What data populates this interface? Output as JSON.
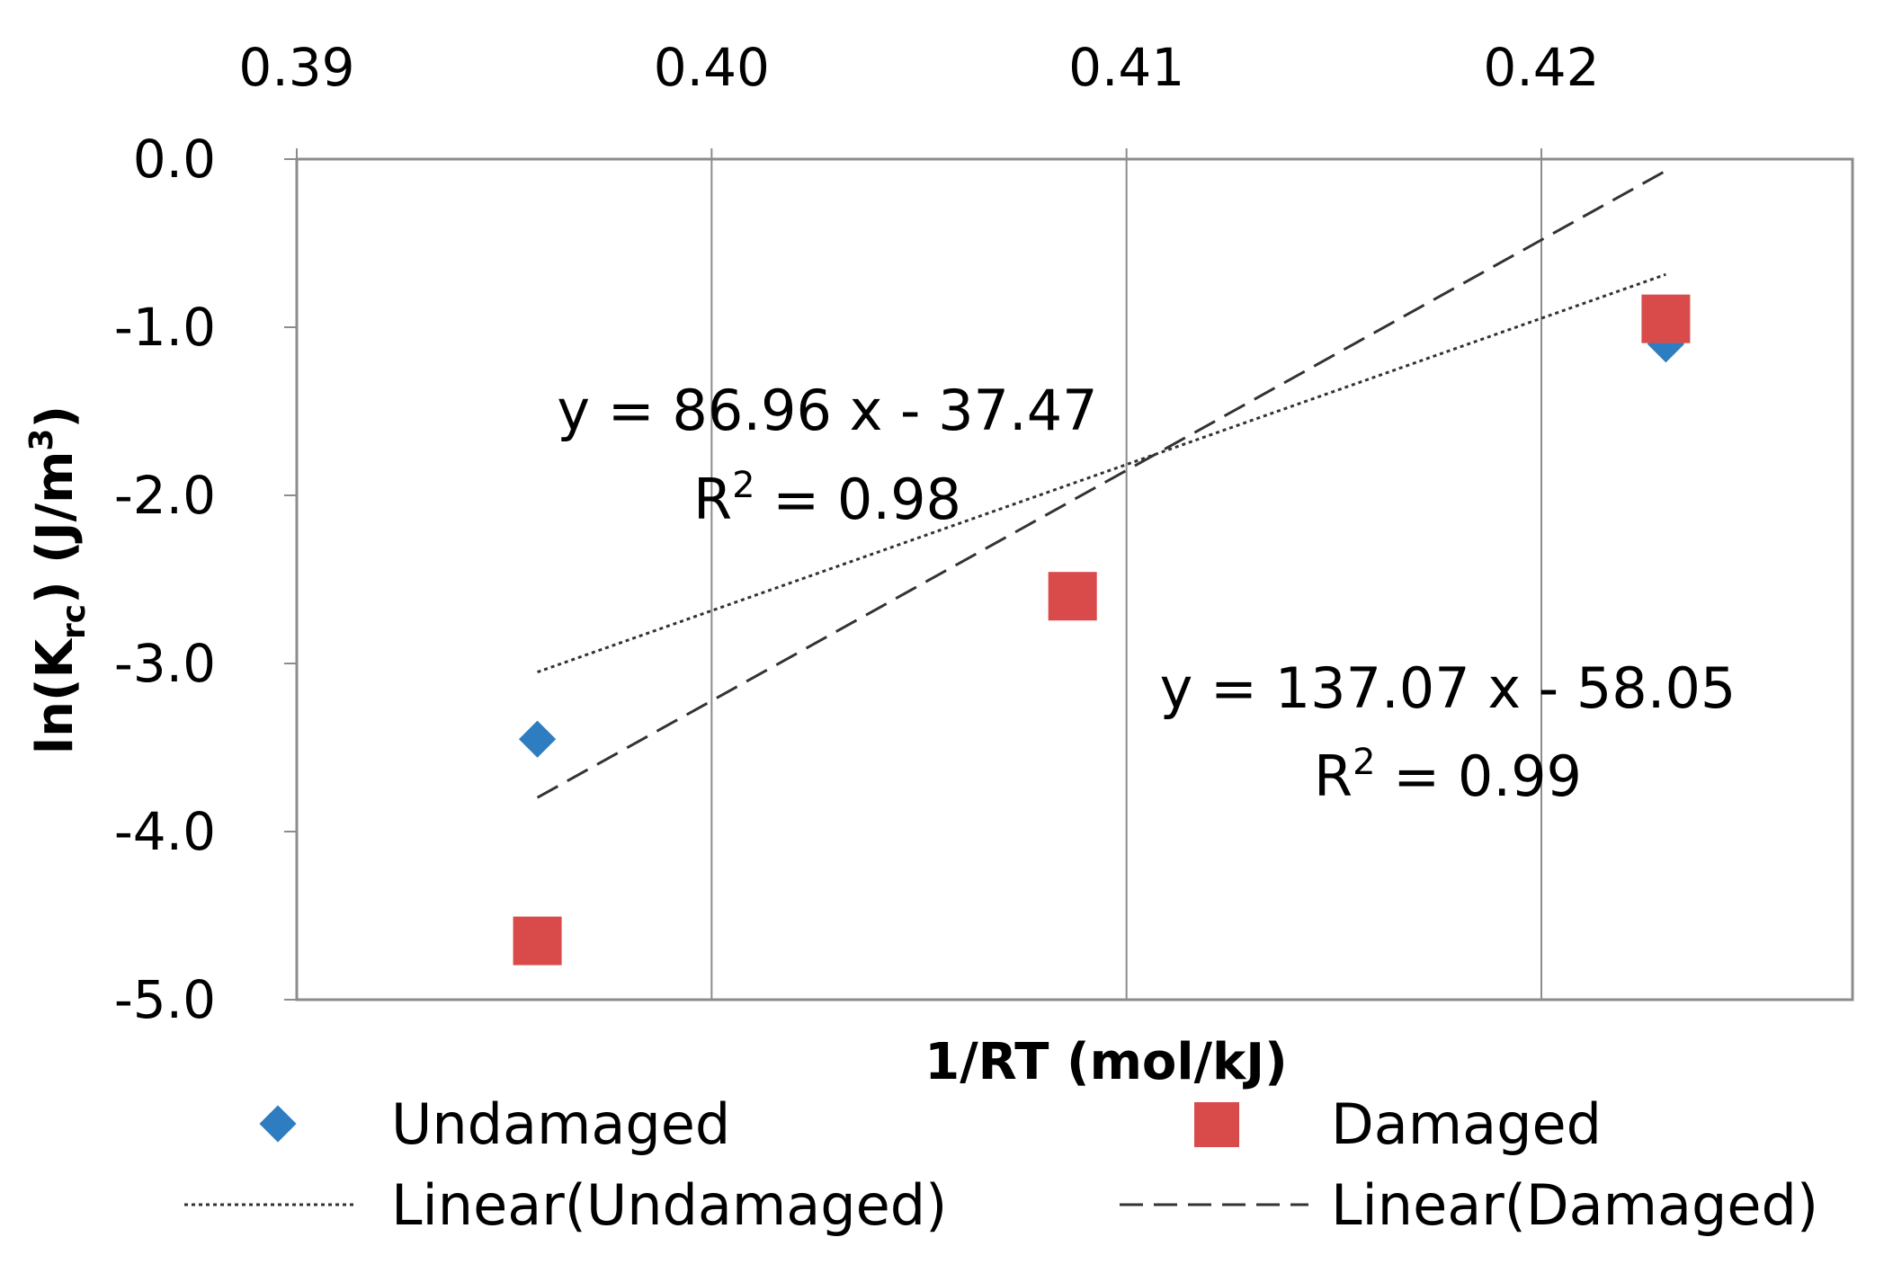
{
  "chart_data": {
    "type": "scatter",
    "title": "",
    "xlabel": "1/RT (mol/kJ)",
    "ylabel": "ln(K",
    "ylabel_sub": "rc",
    "ylabel_end": ") (J/m",
    "ylabel_sup": "3",
    "ylabel_close": ")",
    "xlim": [
      0.39,
      0.4275
    ],
    "ylim": [
      -5.0,
      0.0
    ],
    "x_ticks": [
      0.39,
      0.4,
      0.41,
      0.42
    ],
    "x_tick_labels": [
      "0.39",
      "0.40",
      "0.41",
      "0.42"
    ],
    "x_axis_position": "top",
    "y_ticks": [
      0.0,
      -1.0,
      -2.0,
      -3.0,
      -4.0,
      -5.0
    ],
    "y_tick_labels": [
      "0.0",
      "-1.0",
      "-2.0",
      "-3.0",
      "-4.0",
      "-5.0"
    ],
    "gridlines": "vertical",
    "series": [
      {
        "name": "Undamaged",
        "marker": "diamond",
        "color": "#2E7DC1",
        "x": [
          0.3958,
          0.4087,
          0.423
        ],
        "y": [
          -3.45,
          -2.6,
          -1.1
        ],
        "trendline": {
          "name": "Linear(Undamaged)",
          "style": "dotted",
          "slope": 86.96,
          "intercept": -37.47,
          "equation": "y = 86.96 x - 37.47",
          "r2_label": "R",
          "r2_sup": "2",
          "r2_value": " = 0.98"
        }
      },
      {
        "name": "Damaged",
        "marker": "square",
        "color": "#D94A4A",
        "x": [
          0.3958,
          0.4087,
          0.423
        ],
        "y": [
          -4.65,
          -2.6,
          -0.95
        ],
        "trendline": {
          "name": "Linear(Damaged)",
          "style": "dashed",
          "slope": 137.07,
          "intercept": -58.05,
          "equation": "y = 137.07 x - 58.05",
          "r2_label": "R",
          "r2_sup": "2",
          "r2_value": " = 0.99"
        }
      }
    ],
    "legend": {
      "position": "bottom",
      "items": [
        {
          "label": "Undamaged"
        },
        {
          "label": "Damaged"
        },
        {
          "label": "Linear(Undamaged)"
        },
        {
          "label": "Linear(Damaged)"
        }
      ]
    }
  }
}
